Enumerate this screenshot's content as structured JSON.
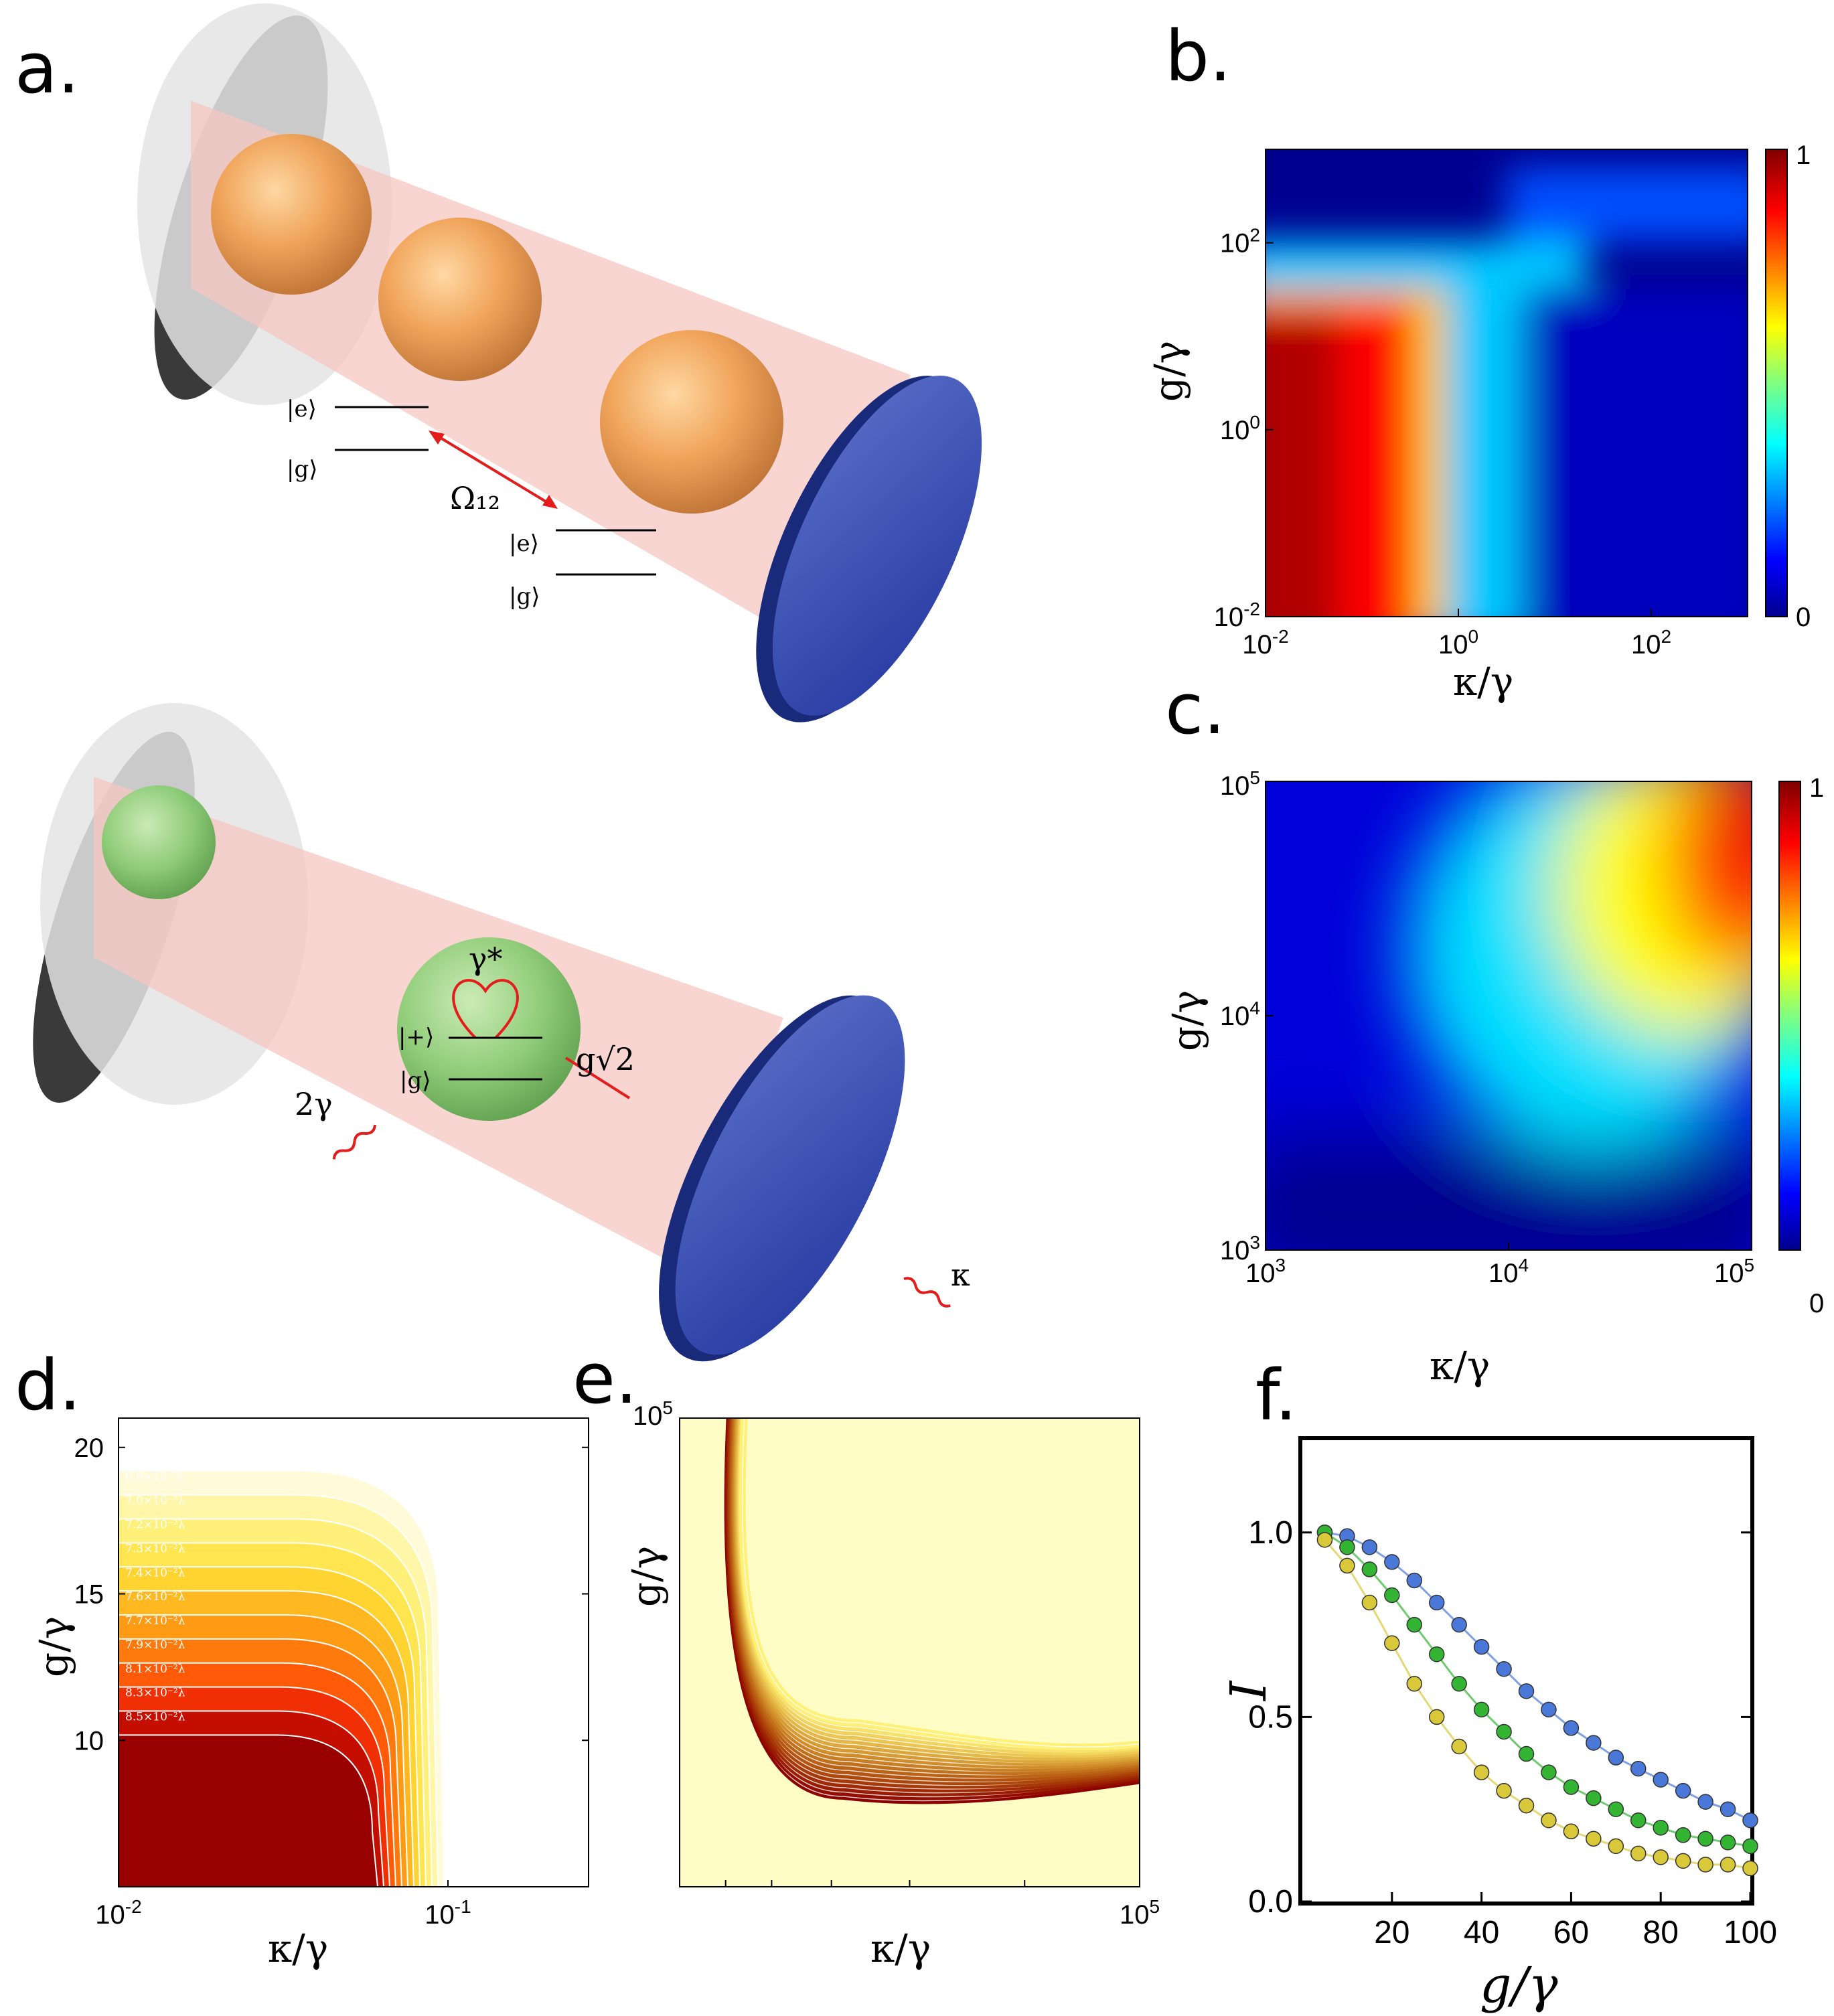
{
  "panels": {
    "a": "a.",
    "b": "b.",
    "c": "c.",
    "d": "d.",
    "e": "e.",
    "f": "f."
  },
  "diagram_top": {
    "state_e1": "|e⟩",
    "state_g1": "|g⟩",
    "coupling": "Ω₁₂",
    "state_e2": "|e⟩",
    "state_g2": "|g⟩"
  },
  "diagram_bottom": {
    "dephasing": "γ*",
    "state_plus": "|+⟩",
    "state_g": "|g⟩",
    "coupling": "g√2",
    "decay": "2γ",
    "cavity_loss": "κ"
  },
  "colors": {
    "jet_dark_red": "#800000",
    "jet_red": "#ff0000",
    "jet_yellow": "#ffff00",
    "jet_cyan": "#00ffff",
    "jet_blue": "#0000ff",
    "jet_dark_blue": "#00008f",
    "mirror_blue": "#2f44b4",
    "atom_orange": "#f0a050",
    "atom_green": "#7cc86a",
    "beam_pink": "#f6c7c1"
  },
  "chart_data": [
    {
      "id": "b",
      "type": "heatmap",
      "xlabel": "κ/γ",
      "ylabel": "g/γ",
      "xscale": "log",
      "yscale": "log",
      "xlim": [
        0.01,
        1000
      ],
      "ylim": [
        0.01,
        1000
      ],
      "xticks": [
        "10-2",
        "100",
        "102"
      ],
      "yticks": [
        "10-2",
        "100",
        "102"
      ],
      "colorbar": {
        "min": "0",
        "max": "1"
      },
      "description_values": {
        "high_region": "κ/γ < 1, g/γ < 20",
        "peak": 1,
        "low": 0
      }
    },
    {
      "id": "c",
      "type": "heatmap",
      "xlabel": "κ/γ",
      "ylabel": "g/γ",
      "xscale": "log",
      "yscale": "log",
      "xlim": [
        1000,
        100000
      ],
      "ylim": [
        1000,
        100000
      ],
      "xticks": [
        "103",
        "104",
        "105"
      ],
      "yticks": [
        "103",
        "104",
        "105"
      ],
      "colorbar": {
        "min": "0",
        "max": "1"
      }
    },
    {
      "id": "d",
      "type": "contour",
      "xlabel": "κ/γ",
      "ylabel": "g/γ",
      "xlim": [
        0.01,
        0.3
      ],
      "ylim": [
        5,
        21
      ],
      "xticks": [
        "10-2",
        "10-1"
      ],
      "yticks": [
        "10",
        "15",
        "20"
      ],
      "contour_labels": [
        "6.9×10⁻²λ",
        "7.0×10⁻²λ",
        "7.2×10⁻²λ",
        "7.3×10⁻²λ",
        "7.4×10⁻²λ",
        "7.6×10⁻²λ",
        "7.7×10⁻²λ",
        "7.9×10⁻²λ",
        "8.1×10⁻²λ",
        "8.3×10⁻²λ",
        "8.5×10⁻²λ"
      ]
    },
    {
      "id": "e",
      "type": "contour",
      "xlabel": "κ/γ",
      "ylabel": "g/γ",
      "xticks": [
        "105"
      ],
      "yticks": [
        "105"
      ]
    },
    {
      "id": "f",
      "type": "line",
      "xlabel": "g/γ",
      "ylabel": "I",
      "xlim": [
        0,
        100
      ],
      "ylim": [
        0,
        1.25
      ],
      "xticks": [
        "20",
        "40",
        "60",
        "80",
        "100"
      ],
      "yticks": [
        "0.0",
        "0.5",
        "1.0"
      ],
      "x": [
        5,
        10,
        15,
        20,
        25,
        30,
        35,
        40,
        45,
        50,
        55,
        60,
        65,
        70,
        75,
        80,
        85,
        90,
        95,
        100
      ],
      "series": [
        {
          "name": "blue",
          "color": "#4a78d8",
          "values": [
            1.0,
            0.99,
            0.96,
            0.92,
            0.87,
            0.81,
            0.75,
            0.69,
            0.63,
            0.57,
            0.52,
            0.47,
            0.43,
            0.39,
            0.36,
            0.33,
            0.3,
            0.27,
            0.25,
            0.22
          ]
        },
        {
          "name": "green",
          "color": "#33b533",
          "values": [
            1.0,
            0.96,
            0.9,
            0.83,
            0.75,
            0.67,
            0.59,
            0.52,
            0.46,
            0.4,
            0.35,
            0.31,
            0.28,
            0.25,
            0.22,
            0.2,
            0.18,
            0.17,
            0.16,
            0.15
          ]
        },
        {
          "name": "yellow",
          "color": "#d8c83a",
          "values": [
            0.98,
            0.91,
            0.81,
            0.7,
            0.59,
            0.5,
            0.42,
            0.35,
            0.3,
            0.26,
            0.22,
            0.19,
            0.17,
            0.15,
            0.13,
            0.12,
            0.11,
            0.1,
            0.1,
            0.09
          ]
        }
      ]
    }
  ]
}
